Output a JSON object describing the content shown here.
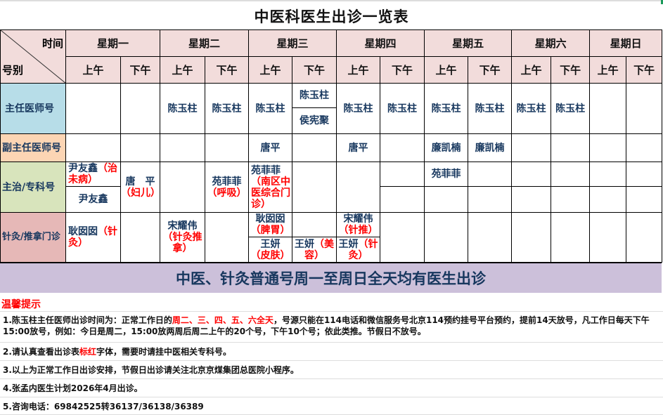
{
  "title": "中医科医生出诊一览表",
  "header": {
    "time": "时间",
    "type": "号别",
    "days": [
      "星期一",
      "星期二",
      "星期三",
      "星期四",
      "星期五",
      "星期六",
      "星期日"
    ],
    "am": "上午",
    "pm": "下午"
  },
  "rows": {
    "chief": {
      "label": "主任医师号",
      "tue_am": "陈玉柱",
      "tue_pm": "陈玉柱",
      "wed_am": "陈玉柱",
      "wed_pm_top": "陈玉柱",
      "wed_pm_bottom": "侯宪聚",
      "thu_am": "陈玉柱",
      "thu_pm": "陈玉柱",
      "fri_am": "陈玉柱",
      "fri_pm": "陈玉柱",
      "sat_am": "陈玉柱",
      "sat_pm": "陈玉柱"
    },
    "deputy": {
      "label": "副主任医师号",
      "wed_am": "唐平",
      "thu_am": "唐平",
      "fri_am": "廉凯楠",
      "fri_pm": "廉凯楠"
    },
    "attending": {
      "label": "主治/专科号",
      "mon_am_top": {
        "name": "尹友鑫",
        "note": "（治未病）"
      },
      "mon_am_bottom": "尹友鑫",
      "mon_pm": {
        "name": "唐　平",
        "note": "（妇儿）"
      },
      "tue_pm": {
        "name": "苑菲菲",
        "note": "（呼吸）"
      },
      "wed_am": {
        "name": "苑菲菲",
        "note": "（南区中医综合门诊）"
      },
      "fri_am_top": "苑菲菲"
    },
    "acupuncture": {
      "label": "针灸/推拿门诊",
      "mon_am": {
        "name": "耿囡囡",
        "note": "（针灸）"
      },
      "tue_am": {
        "name": "宋耀伟",
        "note": "（针灸推拿）"
      },
      "wed_am_top": {
        "name": "耿囡囡",
        "note": "（脾胃）"
      },
      "wed_am_bottom": {
        "name": "王妍",
        "note": "（皮肤）"
      },
      "wed_pm_bottom": {
        "name": "王妍",
        "note": "（美容）"
      },
      "thu_am_top": {
        "name": "宋耀伟",
        "note": "（针推）"
      },
      "thu_am_bottom": {
        "name": "王妍",
        "note": "（针灸）"
      }
    }
  },
  "banner": "中医、针灸普通号周一至周日全天均有医生出诊",
  "tips_title": "温馨提示",
  "notes": {
    "n1_a": "1.陈玉柱主任医师出诊时间为：正常工作日的",
    "n1_red": "周二、三、四、五、六全天",
    "n1_b": "，号源只能在114电话和微信服务号北京114预约挂号平台预约，提前14天放号，凡工作日每天下午15:00放号，例如：今日是周二，15:00放两周后周二上午的20个号，下午10个号；依此类推。节假日不放号。",
    "n2_a": "2.请认真查看出诊表",
    "n2_red": "标红",
    "n2_b": "字体，需要时请挂中医相关专科号。",
    "n3": "3.以上为正常工作日出诊安排，节假日出诊请关注北京京煤集团总医院小程序。",
    "n4": "4.张孟内医生计划2026年4月出诊。",
    "n5": "5.咨询电话：69842525转36137/36138/36389"
  },
  "colors": {
    "header_bg": "#f2dcdb",
    "chief_bg": "#b7dde8",
    "deputy_bg": "#fcd5b4",
    "attending_bg": "#d8e4bc",
    "acupuncture_bg": "#e6b8b7",
    "banner_bg": "#ccc0da",
    "name": "#17375e",
    "highlight": "#ff0000"
  }
}
